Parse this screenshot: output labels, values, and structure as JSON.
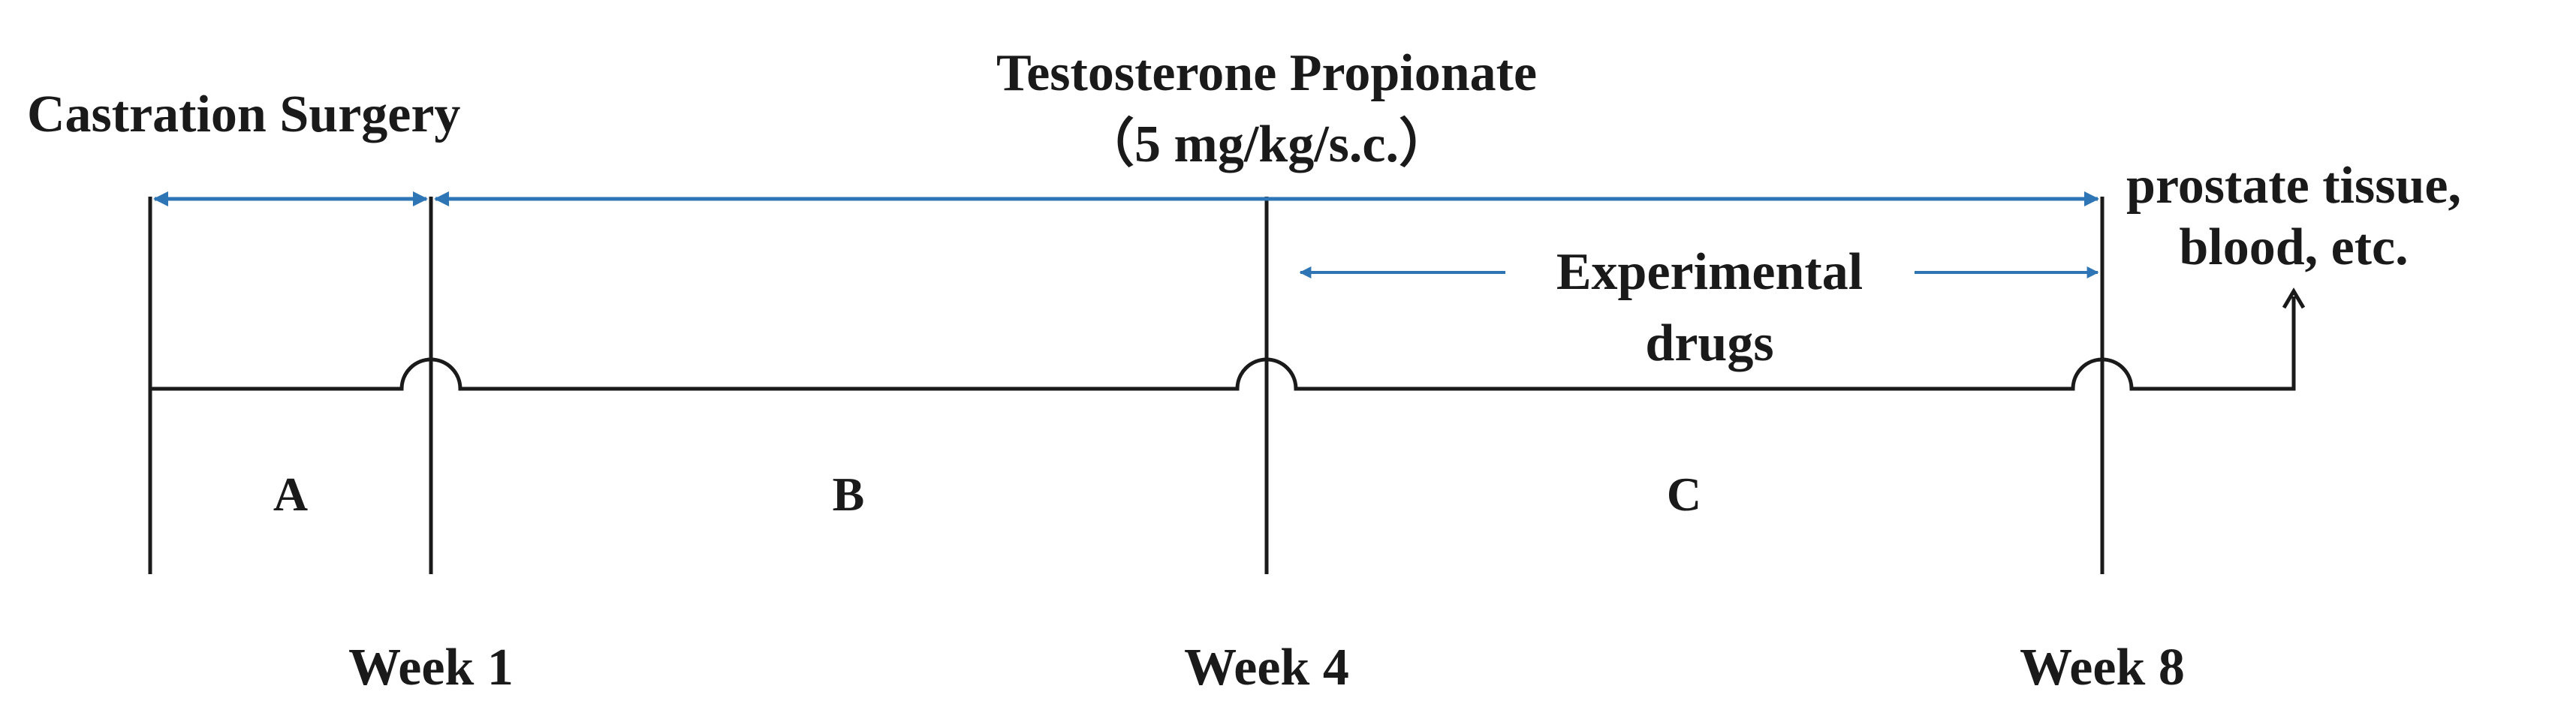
{
  "labels": {
    "castration": "Castration Surgery",
    "tp_title": "Testosterone Propionate",
    "tp_dose": "（5 mg/kg/s.c.）",
    "experimental_line1": "Experimental",
    "experimental_line2": "drugs",
    "outcome_line1": "prostate tissue,",
    "outcome_line2": "blood, etc."
  },
  "phases": [
    "A",
    "B",
    "C"
  ],
  "weeks": [
    "Week 1",
    "Week 4",
    "Week 8"
  ],
  "colors": {
    "arrow": "#2e75b6",
    "line": "#1a1a1a",
    "text": "#1a1a1a"
  }
}
